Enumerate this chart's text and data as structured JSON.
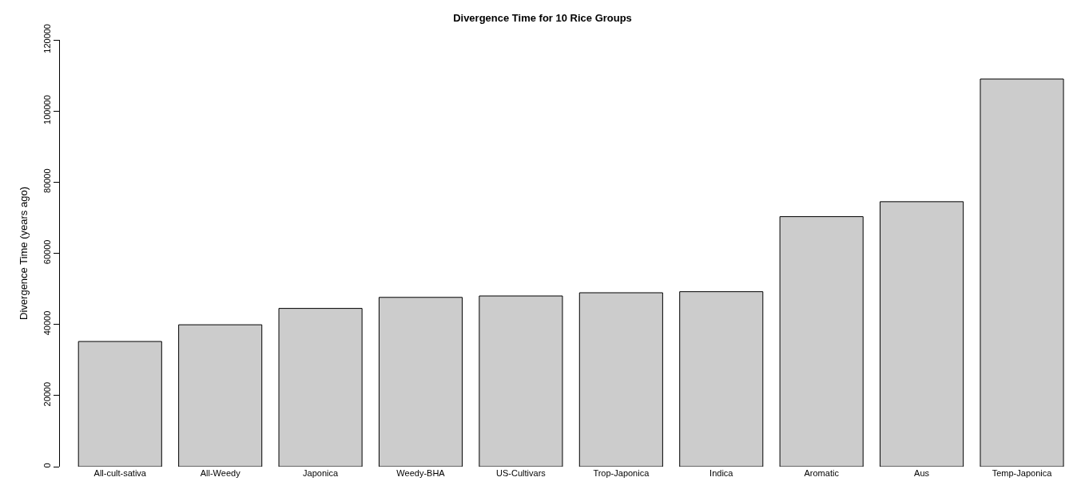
{
  "chart_data": {
    "type": "bar",
    "title": "Divergence Time for 10 Rice Groups",
    "ylabel": "Divergence Time (years ago)",
    "categories": [
      "All-cult-sativa",
      "All-Weedy",
      "Japonica",
      "Weedy-BHA",
      "US-Cultivars",
      "Trop-Japonica",
      "Indica",
      "Aromatic",
      "Aus",
      "Temp-Japonica"
    ],
    "values": [
      35200,
      39900,
      44500,
      47600,
      48000,
      48900,
      49200,
      70300,
      74500,
      109000
    ],
    "color": "#cccccc",
    "ylim": [
      0,
      120000
    ],
    "yticks": [
      0,
      20000,
      40000,
      60000,
      80000,
      100000,
      120000
    ]
  }
}
